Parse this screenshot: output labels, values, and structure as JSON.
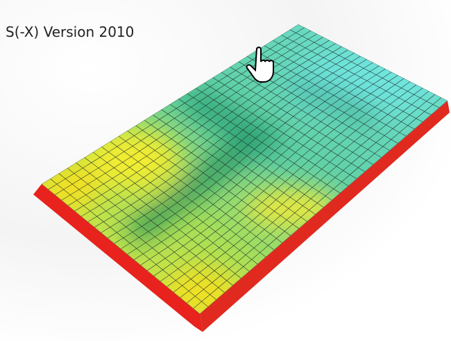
{
  "header": {
    "title": "S(-X) Version 2010"
  }
}
